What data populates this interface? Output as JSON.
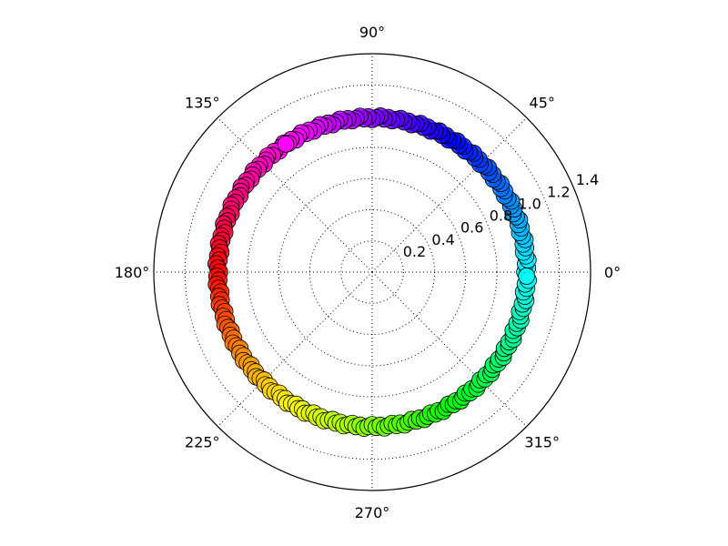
{
  "chart_data": {
    "type": "scatter",
    "projection": "polar",
    "title": "",
    "xlabel": "",
    "ylabel": "",
    "angle_unit": "degrees",
    "angle_ticks": [
      {
        "value": 0,
        "label": "0°"
      },
      {
        "value": 45,
        "label": "45°"
      },
      {
        "value": 90,
        "label": "90°"
      },
      {
        "value": 135,
        "label": "135°"
      },
      {
        "value": 180,
        "label": "180°"
      },
      {
        "value": 225,
        "label": "225°"
      },
      {
        "value": 270,
        "label": "270°"
      },
      {
        "value": 315,
        "label": "315°"
      }
    ],
    "radial_ticks": [
      {
        "value": 0.2,
        "label": "0.2"
      },
      {
        "value": 0.4,
        "label": "0.4"
      },
      {
        "value": 0.6,
        "label": "0.6"
      },
      {
        "value": 0.8,
        "label": "0.8"
      },
      {
        "value": 1.0,
        "label": "1.0"
      },
      {
        "value": 1.2,
        "label": "1.2"
      },
      {
        "value": 1.4,
        "label": "1.4"
      }
    ],
    "rlim": [
      0,
      1.4
    ],
    "grid": true,
    "grid_style": "dotted",
    "radial_label_angle_deg": 22.5,
    "color_mapping": "hue by angle (hsv, 0°→120° hue 180→240→300→... cycle)",
    "series": [
      {
        "marker": "circle",
        "edge_color": "#000000",
        "points": [
          {
            "theta": 0,
            "r": 0.99,
            "color": "#00ffff"
          },
          {
            "theta": 6,
            "r": 0.99,
            "color": "#00e6ff"
          },
          {
            "theta": 12,
            "r": 0.99,
            "color": "#00ccff"
          },
          {
            "theta": 18,
            "r": 0.99,
            "color": "#00b3ff"
          },
          {
            "theta": 24,
            "r": 0.99,
            "color": "#0099ff"
          },
          {
            "theta": 30,
            "r": 0.99,
            "color": "#0080ff"
          },
          {
            "theta": 36,
            "r": 0.99,
            "color": "#0066ff"
          },
          {
            "theta": 42,
            "r": 0.99,
            "color": "#004dff"
          },
          {
            "theta": 48,
            "r": 0.99,
            "color": "#0033ff"
          },
          {
            "theta": 54,
            "r": 0.99,
            "color": "#001aff"
          },
          {
            "theta": 60,
            "r": 0.99,
            "color": "#0000ff"
          },
          {
            "theta": 66,
            "r": 0.99,
            "color": "#1a00ff"
          },
          {
            "theta": 72,
            "r": 0.99,
            "color": "#3300ff"
          },
          {
            "theta": 78,
            "r": 0.99,
            "color": "#4d00ff"
          },
          {
            "theta": 84,
            "r": 0.99,
            "color": "#6600ff"
          },
          {
            "theta": 90,
            "r": 0.99,
            "color": "#8000ff"
          },
          {
            "theta": 96,
            "r": 0.99,
            "color": "#9900ff"
          },
          {
            "theta": 102,
            "r": 0.99,
            "color": "#b300ff"
          },
          {
            "theta": 108,
            "r": 0.99,
            "color": "#cc00ff"
          },
          {
            "theta": 114,
            "r": 0.99,
            "color": "#e600ff"
          },
          {
            "theta": 120,
            "r": 0.99,
            "color": "#ff00ff"
          },
          {
            "theta": 126,
            "r": 0.99,
            "color": "#ff00e6"
          },
          {
            "theta": 132,
            "r": 0.99,
            "color": "#ff00cc"
          },
          {
            "theta": 138,
            "r": 0.99,
            "color": "#ff00b3"
          },
          {
            "theta": 144,
            "r": 0.99,
            "color": "#ff0099"
          },
          {
            "theta": 150,
            "r": 0.99,
            "color": "#ff0080"
          },
          {
            "theta": 156,
            "r": 0.99,
            "color": "#ff0066"
          },
          {
            "theta": 162,
            "r": 0.99,
            "color": "#ff004d"
          },
          {
            "theta": 168,
            "r": 0.99,
            "color": "#ff0033"
          },
          {
            "theta": 174,
            "r": 0.99,
            "color": "#ff001a"
          },
          {
            "theta": 180,
            "r": 0.99,
            "color": "#ff0000"
          },
          {
            "theta": 186,
            "r": 0.99,
            "color": "#ff1a00"
          },
          {
            "theta": 192,
            "r": 0.99,
            "color": "#ff3300"
          },
          {
            "theta": 198,
            "r": 0.99,
            "color": "#ff4d00"
          },
          {
            "theta": 204,
            "r": 0.99,
            "color": "#ff6600"
          },
          {
            "theta": 210,
            "r": 0.99,
            "color": "#ff8000"
          },
          {
            "theta": 216,
            "r": 0.99,
            "color": "#ff9900"
          },
          {
            "theta": 222,
            "r": 0.99,
            "color": "#ffb300"
          },
          {
            "theta": 228,
            "r": 0.99,
            "color": "#ffcc00"
          },
          {
            "theta": 234,
            "r": 0.99,
            "color": "#ffe600"
          },
          {
            "theta": 240,
            "r": 0.99,
            "color": "#ffff00"
          },
          {
            "theta": 246,
            "r": 0.99,
            "color": "#e6ff00"
          },
          {
            "theta": 252,
            "r": 0.99,
            "color": "#ccff00"
          },
          {
            "theta": 258,
            "r": 0.99,
            "color": "#b3ff00"
          },
          {
            "theta": 264,
            "r": 0.99,
            "color": "#99ff00"
          },
          {
            "theta": 270,
            "r": 0.99,
            "color": "#80ff00"
          },
          {
            "theta": 276,
            "r": 0.99,
            "color": "#66ff00"
          },
          {
            "theta": 282,
            "r": 0.99,
            "color": "#4dff00"
          },
          {
            "theta": 288,
            "r": 0.99,
            "color": "#33ff00"
          },
          {
            "theta": 294,
            "r": 0.99,
            "color": "#1aff00"
          },
          {
            "theta": 300,
            "r": 0.99,
            "color": "#00ff00"
          },
          {
            "theta": 306,
            "r": 0.99,
            "color": "#00ff1a"
          },
          {
            "theta": 312,
            "r": 0.99,
            "color": "#00ff33"
          },
          {
            "theta": 318,
            "r": 0.99,
            "color": "#00ff4d"
          },
          {
            "theta": 324,
            "r": 0.99,
            "color": "#00ff66"
          },
          {
            "theta": 330,
            "r": 0.99,
            "color": "#00ff80"
          },
          {
            "theta": 336,
            "r": 0.99,
            "color": "#00ff99"
          },
          {
            "theta": 342,
            "r": 0.99,
            "color": "#00ffb3"
          },
          {
            "theta": 348,
            "r": 0.99,
            "color": "#00ffcc"
          },
          {
            "theta": 354,
            "r": 0.99,
            "color": "#00ffe6"
          }
        ]
      }
    ],
    "highlight": {
      "theta": 124,
      "r": 0.99,
      "color": "#ff00ff"
    }
  }
}
